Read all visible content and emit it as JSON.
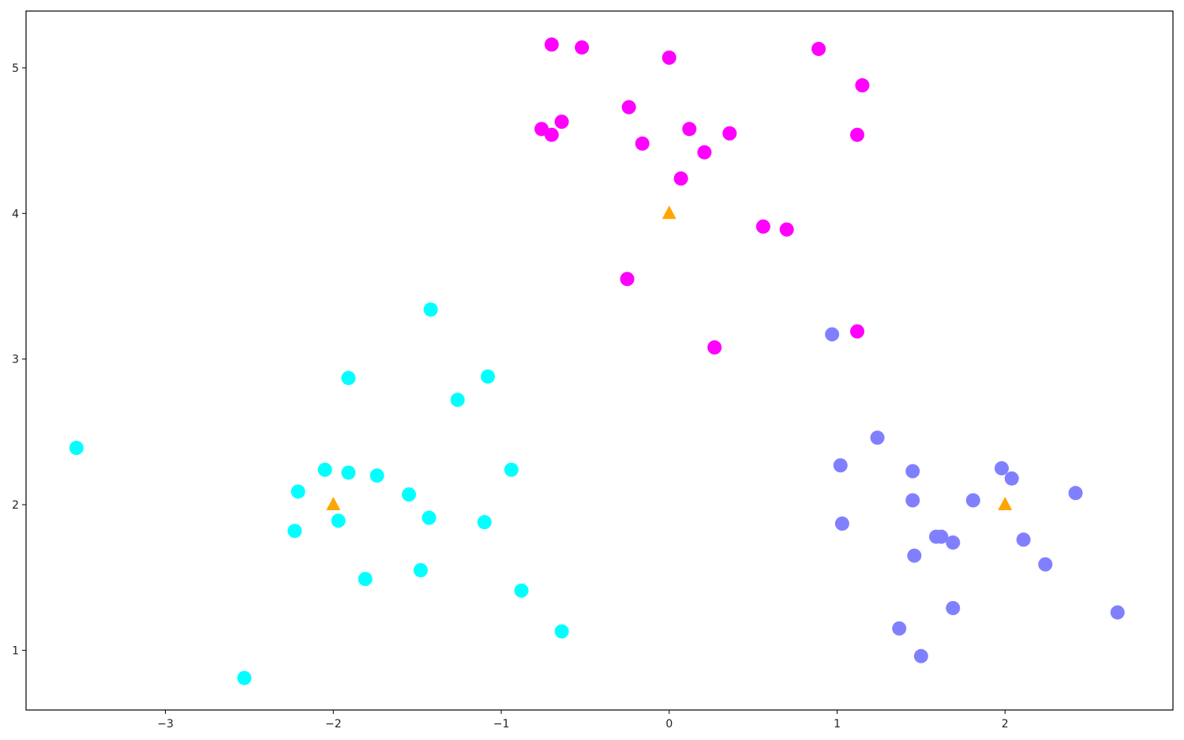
{
  "chart_data": {
    "type": "scatter",
    "title": "",
    "xlabel": "",
    "ylabel": "",
    "xlim": [
      -3.83,
      3.0
    ],
    "ylim": [
      0.59,
      5.39
    ],
    "grid": false,
    "legend": "none",
    "xticks": [
      -3,
      -2,
      -1,
      0,
      1,
      2
    ],
    "yticks": [
      1,
      2,
      3,
      4,
      5
    ],
    "xtick_labels": [
      "−3",
      "−2",
      "−1",
      "0",
      "1",
      "2"
    ],
    "ytick_labels": [
      "1",
      "2",
      "3",
      "4",
      "5"
    ],
    "series": [
      {
        "color": "#ff00ff",
        "marker": "circle",
        "points": [
          [
            -0.7,
            5.16
          ],
          [
            -0.52,
            5.14
          ],
          [
            0.0,
            5.07
          ],
          [
            0.89,
            5.13
          ],
          [
            1.15,
            4.88
          ],
          [
            -0.24,
            4.73
          ],
          [
            -0.64,
            4.63
          ],
          [
            -0.76,
            4.58
          ],
          [
            -0.7,
            4.54
          ],
          [
            0.12,
            4.58
          ],
          [
            0.36,
            4.55
          ],
          [
            -0.16,
            4.48
          ],
          [
            0.21,
            4.42
          ],
          [
            1.12,
            4.54
          ],
          [
            0.07,
            4.24
          ],
          [
            0.56,
            3.91
          ],
          [
            0.7,
            3.89
          ],
          [
            -0.25,
            3.55
          ],
          [
            0.27,
            3.08
          ],
          [
            1.12,
            3.19
          ]
        ]
      },
      {
        "color": "#00ffff",
        "marker": "circle",
        "points": [
          [
            -3.53,
            2.39
          ],
          [
            -1.42,
            3.34
          ],
          [
            -1.91,
            2.87
          ],
          [
            -1.08,
            2.88
          ],
          [
            -1.26,
            2.72
          ],
          [
            -2.05,
            2.24
          ],
          [
            -1.91,
            2.22
          ],
          [
            -1.74,
            2.2
          ],
          [
            -2.21,
            2.09
          ],
          [
            -1.55,
            2.07
          ],
          [
            -0.94,
            2.24
          ],
          [
            -1.97,
            1.89
          ],
          [
            -1.43,
            1.91
          ],
          [
            -1.1,
            1.88
          ],
          [
            -2.23,
            1.82
          ],
          [
            -1.81,
            1.49
          ],
          [
            -1.48,
            1.55
          ],
          [
            -0.88,
            1.41
          ],
          [
            -0.64,
            1.13
          ],
          [
            -2.53,
            0.81
          ]
        ]
      },
      {
        "color": "#8080ff",
        "marker": "circle",
        "points": [
          [
            0.97,
            3.17
          ],
          [
            1.24,
            2.46
          ],
          [
            1.02,
            2.27
          ],
          [
            1.45,
            2.23
          ],
          [
            1.98,
            2.25
          ],
          [
            2.04,
            2.18
          ],
          [
            2.42,
            2.08
          ],
          [
            1.45,
            2.03
          ],
          [
            1.81,
            2.03
          ],
          [
            1.03,
            1.87
          ],
          [
            1.59,
            1.78
          ],
          [
            1.62,
            1.78
          ],
          [
            1.69,
            1.74
          ],
          [
            2.11,
            1.76
          ],
          [
            1.46,
            1.65
          ],
          [
            2.24,
            1.59
          ],
          [
            1.69,
            1.29
          ],
          [
            2.67,
            1.26
          ],
          [
            1.37,
            1.15
          ],
          [
            1.5,
            0.96
          ]
        ]
      },
      {
        "color": "#ffa500",
        "marker": "triangle",
        "points": [
          [
            0.0,
            4.0
          ],
          [
            -2.0,
            2.0
          ],
          [
            2.0,
            2.0
          ]
        ]
      }
    ]
  }
}
